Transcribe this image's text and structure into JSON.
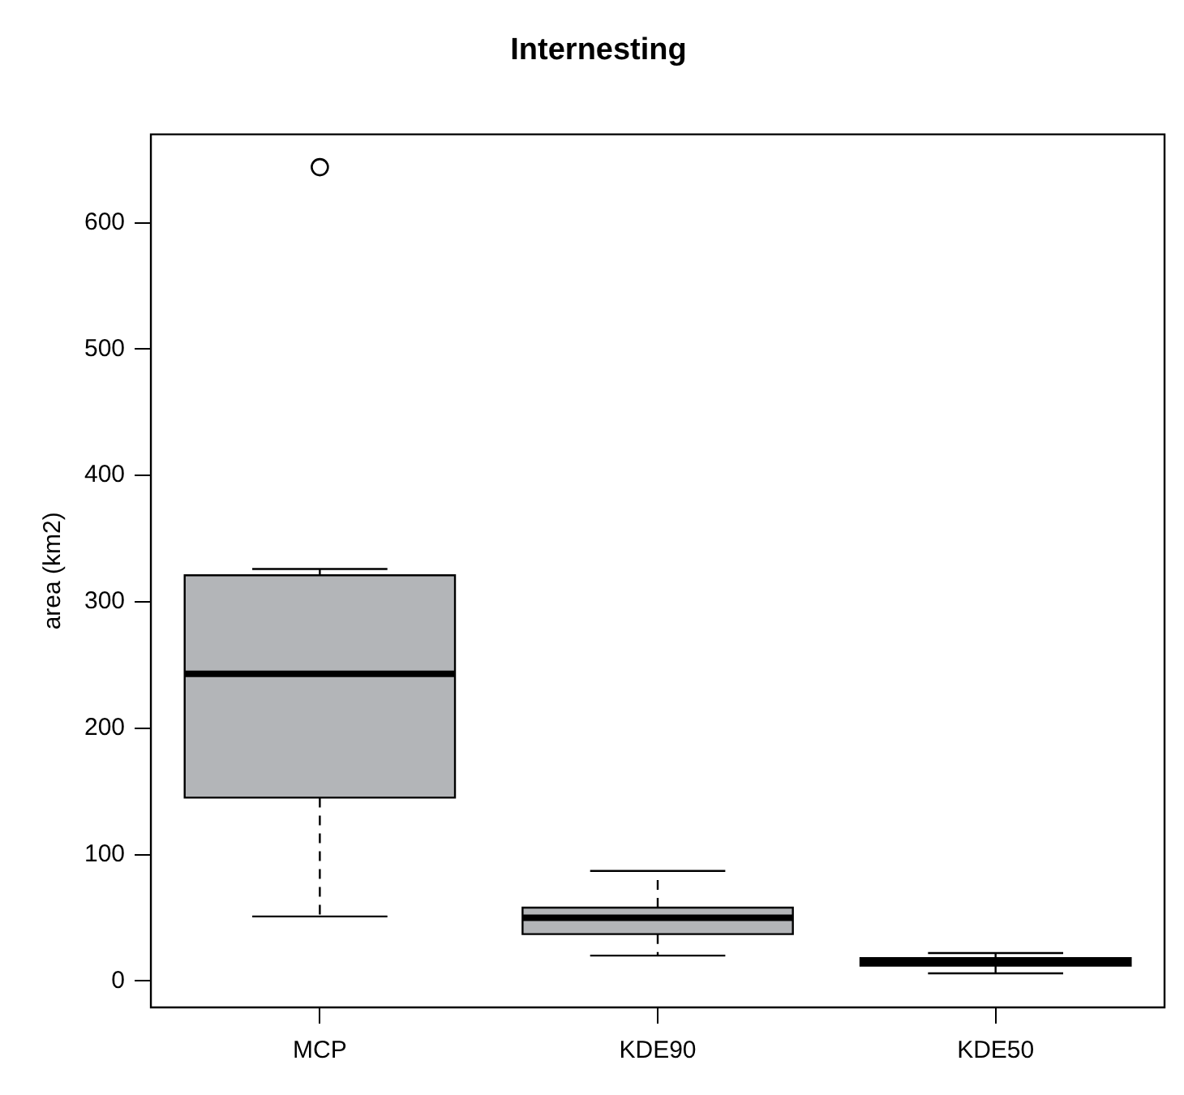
{
  "chart_data": {
    "type": "box",
    "title": "Internesting",
    "ylabel": "area (km2)",
    "categories": [
      "MCP",
      "KDE90",
      "KDE50"
    ],
    "color": "#b3b5b8",
    "boxes": [
      {
        "low": 51,
        "q1": 145,
        "median": 243,
        "q3": 321,
        "high": 326,
        "outliers": [
          644
        ]
      },
      {
        "low": 20,
        "q1": 37,
        "median": 50,
        "q3": 58,
        "high": 87
      },
      {
        "low": 6,
        "q1": 12,
        "median": 15,
        "q3": 18,
        "high": 22
      }
    ],
    "ylim": [
      -21,
      670
    ],
    "yticks": [
      0,
      100,
      200,
      300,
      400,
      500,
      600
    ],
    "grid": false,
    "legend": false
  }
}
